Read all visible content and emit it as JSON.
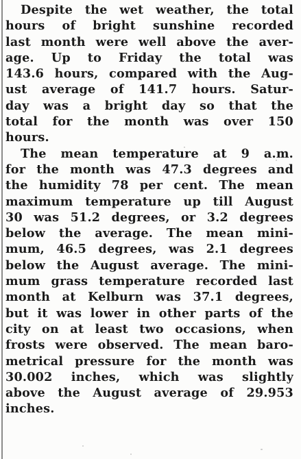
{
  "article": {
    "paragraphs": [
      {
        "lines": [
          "Despite the wet weather, the total",
          "hours of bright sunshine recorded",
          "last month were well above the aver-",
          "age. Up to Friday the total was",
          "143.6 hours, compared with the Aug-",
          "ust average of 141.7 hours. Satur-",
          "day was a bright day so that the",
          "total for the month was over 150",
          "hours."
        ]
      },
      {
        "lines": [
          "The mean temperature at 9 a.m.",
          "for the month was 47.3 degrees and",
          "the humidity 78 per cent. The mean",
          "maximum temperature up till August",
          "30 was 51.2 degrees, or 3.2 degrees",
          "below the average. The mean mini-",
          "mum, 46.5 degrees, was 2.1 degrees",
          "below the August average. The mini-",
          "mum grass temperature recorded last",
          "month at Kelburn was 37.1 degrees,",
          "but it was lower in other parts of the",
          "city on at least two occasions, when",
          "frosts were observed. The mean baro-",
          "metrical pressure for the month was",
          "30.002 inches, which was slightly",
          "above the August average of 29.953",
          "inches."
        ]
      }
    ]
  }
}
